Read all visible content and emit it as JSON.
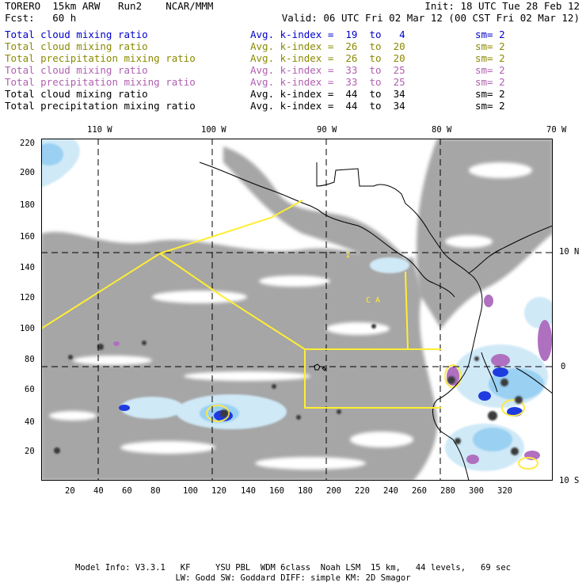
{
  "header": {
    "model": "TORERO  15km ARW   Run2    NCAR/MMM",
    "init": "Init: 18 UTC Tue 28 Feb 12",
    "fcst": "Fcst:   60 h",
    "valid": "Valid: 06 UTC Fri 02 Mar 12 (00 CST Fri 02 Mar 12)"
  },
  "legend": [
    {
      "label": "Total cloud mixing ratio",
      "kindex": "Avg. k-index =  19  to   4",
      "sm": "sm= 2",
      "color": "#0000cc"
    },
    {
      "label": "Total cloud mixing ratio",
      "kindex": "Avg. k-index =  26  to  20",
      "sm": "sm= 2",
      "color": "#8a8a00"
    },
    {
      "label": "Total precipitation mixing ratio",
      "kindex": "Avg. k-index =  26  to  20",
      "sm": "sm= 2",
      "color": "#8a8a00"
    },
    {
      "label": "Total cloud mixing ratio",
      "kindex": "Avg. k-index =  33  to  25",
      "sm": "sm= 2",
      "color": "#b060b0"
    },
    {
      "label": "Total precipitation mixing ratio",
      "kindex": "Avg. k-index =  33  to  25",
      "sm": "sm= 2",
      "color": "#b060b0"
    },
    {
      "label": "Total cloud mixing ratio",
      "kindex": "Avg. k-index =  44  to  34",
      "sm": "sm= 2",
      "color": "#000000"
    },
    {
      "label": "Total precipitation mixing ratio",
      "kindex": "Avg. k-index =  44  to  34",
      "sm": "sm= 2",
      "color": "#000000"
    }
  ],
  "map": {
    "lon_labels": [
      "110 W",
      "100 W",
      "90 W",
      "80 W",
      "70 W"
    ],
    "lat_labels": [
      "10 N",
      "0",
      "10 S"
    ],
    "grid_y_labels": [
      "220",
      "200",
      "180",
      "160",
      "140",
      "120",
      "100",
      "80",
      "60",
      "40",
      "20"
    ],
    "grid_x_labels": [
      "20",
      "40",
      "60",
      "80",
      "100",
      "120",
      "140",
      "160",
      "180",
      "200",
      "220",
      "240",
      "260",
      "280",
      "300",
      "320"
    ],
    "region_labels": [
      "1",
      "C A"
    ]
  },
  "footer": {
    "line1": "Model Info: V3.3.1   KF     YSU PBL  WDM 6class  Noah LSM  15 km,   44 levels,   69 sec",
    "line2": "LW: Godd SW: Goddard DIFF: simple KM: 2D Smagor"
  }
}
